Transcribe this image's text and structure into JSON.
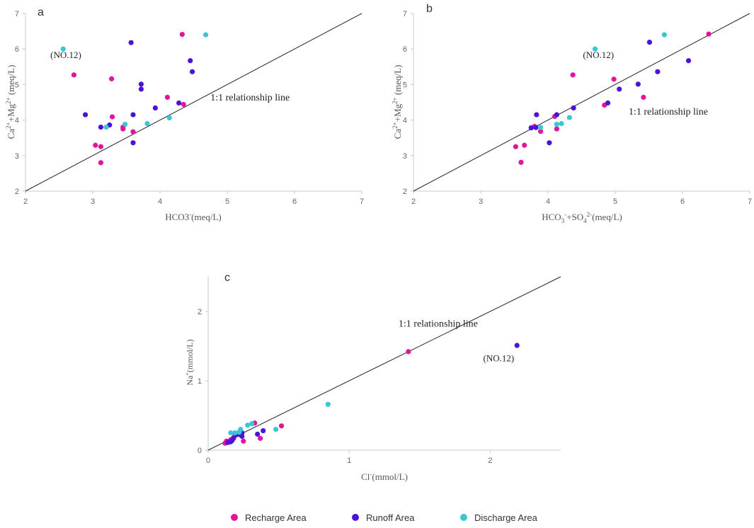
{
  "chart_data": [
    {
      "id": "a",
      "type": "scatter",
      "panel_label": "a",
      "xlabel": "HCO3-(meq/L)",
      "ylabel": "Ca2++Mg2+ (meq/L)",
      "xlim": [
        2,
        7
      ],
      "ylim": [
        2,
        7
      ],
      "xticks": [
        2,
        3,
        4,
        5,
        6,
        7
      ],
      "yticks": [
        2,
        3,
        4,
        5,
        6,
        7
      ],
      "reference_line": {
        "label": "1:1 relationship line",
        "from": [
          2,
          2
        ],
        "to": [
          7,
          7
        ],
        "label_at": [
          4.75,
          4.55
        ]
      },
      "annotations": [
        {
          "text": "(NO.12)",
          "x": 2.6,
          "y": 5.75
        }
      ],
      "series": [
        {
          "name": "Recharge Area",
          "color": "#e3139c",
          "points": [
            [
              4.33,
              6.41
            ],
            [
              2.72,
              5.27
            ],
            [
              3.28,
              5.16
            ],
            [
              4.11,
              4.64
            ],
            [
              4.35,
              4.44
            ],
            [
              3.29,
              4.09
            ],
            [
              3.45,
              3.8
            ],
            [
              3.45,
              3.75
            ],
            [
              3.6,
              3.67
            ],
            [
              3.04,
              3.29
            ],
            [
              3.12,
              3.25
            ],
            [
              3.12,
              2.8
            ]
          ]
        },
        {
          "name": "Runoff Area",
          "color": "#4a14d8",
          "points": [
            [
              3.57,
              6.18
            ],
            [
              4.45,
              5.67
            ],
            [
              4.48,
              5.36
            ],
            [
              3.72,
              5.01
            ],
            [
              3.72,
              4.87
            ],
            [
              4.28,
              4.48
            ],
            [
              3.93,
              4.34
            ],
            [
              2.89,
              4.15
            ],
            [
              3.6,
              4.15
            ],
            [
              3.25,
              3.86
            ],
            [
              3.12,
              3.8
            ],
            [
              3.6,
              3.36
            ]
          ]
        },
        {
          "name": "Discharge Area",
          "color": "#3cc6d3",
          "points": [
            [
              2.56,
              6.0
            ],
            [
              4.68,
              6.4
            ],
            [
              4.14,
              4.06
            ],
            [
              3.81,
              3.9
            ],
            [
              3.48,
              3.88
            ],
            [
              3.2,
              3.8
            ]
          ]
        }
      ]
    },
    {
      "id": "b",
      "type": "scatter",
      "panel_label": "b",
      "xlabel": "HCO3-+SO42-(meq/L)",
      "ylabel": "Ca2++Mg2+ (meq/L)",
      "xlim": [
        2,
        7
      ],
      "ylim": [
        2,
        7
      ],
      "xticks": [
        2,
        3,
        4,
        5,
        6,
        7
      ],
      "yticks": [
        2,
        3,
        4,
        5,
        6,
        7
      ],
      "reference_line": {
        "label": "1:1 relationship line",
        "from": [
          2,
          2
        ],
        "to": [
          7,
          7
        ],
        "label_at": [
          5.2,
          4.15
        ]
      },
      "annotations": [
        {
          "text": "(NO.12)",
          "x": 4.75,
          "y": 5.75
        }
      ],
      "series": [
        {
          "name": "Recharge Area",
          "color": "#e3139c",
          "points": [
            [
              6.39,
              6.42
            ],
            [
              4.37,
              5.27
            ],
            [
              4.98,
              5.15
            ],
            [
              5.42,
              4.64
            ],
            [
              4.84,
              4.42
            ],
            [
              4.1,
              4.1
            ],
            [
              4.13,
              3.75
            ],
            [
              3.89,
              3.68
            ],
            [
              3.8,
              3.82
            ],
            [
              3.52,
              3.25
            ],
            [
              3.65,
              3.29
            ],
            [
              3.6,
              2.81
            ]
          ]
        },
        {
          "name": "Runoff Area",
          "color": "#4a14d8",
          "points": [
            [
              5.51,
              6.19
            ],
            [
              6.09,
              5.67
            ],
            [
              5.63,
              5.36
            ],
            [
              5.34,
              5.01
            ],
            [
              5.06,
              4.87
            ],
            [
              4.89,
              4.48
            ],
            [
              4.38,
              4.34
            ],
            [
              3.83,
              4.15
            ],
            [
              4.13,
              4.15
            ],
            [
              3.75,
              3.78
            ],
            [
              3.82,
              3.79
            ],
            [
              4.02,
              3.36
            ]
          ]
        },
        {
          "name": "Discharge Area",
          "color": "#3cc6d3",
          "points": [
            [
              4.7,
              6.0
            ],
            [
              5.73,
              6.4
            ],
            [
              4.32,
              4.07
            ],
            [
              4.2,
              3.9
            ],
            [
              4.13,
              3.88
            ],
            [
              3.89,
              3.79
            ]
          ]
        }
      ]
    },
    {
      "id": "c",
      "type": "scatter",
      "panel_label": "c",
      "xlabel": "Cl-(mmol/L)",
      "ylabel": "Na+(mmol/L)",
      "xlim": [
        0,
        2.5
      ],
      "ylim": [
        0,
        2.5
      ],
      "xticks": [
        0,
        1,
        2
      ],
      "yticks": [
        0,
        1,
        2
      ],
      "reference_line": {
        "label": "1:1 relationship line",
        "from": [
          0,
          0
        ],
        "to": [
          2.5,
          2.5
        ],
        "label_at": [
          1.35,
          1.78
        ]
      },
      "annotations": [
        {
          "text": "(NO.12)",
          "x": 2.06,
          "y": 1.28
        }
      ],
      "series": [
        {
          "name": "Recharge Area",
          "color": "#e3139c",
          "points": [
            [
              1.42,
              1.42
            ],
            [
              0.52,
              0.35
            ],
            [
              0.33,
              0.39
            ],
            [
              0.37,
              0.17
            ],
            [
              0.25,
              0.13
            ],
            [
              0.2,
              0.24
            ],
            [
              0.19,
              0.22
            ],
            [
              0.18,
              0.18
            ],
            [
              0.17,
              0.16
            ],
            [
              0.16,
              0.15
            ],
            [
              0.13,
              0.13
            ],
            [
              0.12,
              0.1
            ],
            [
              0.21,
              0.23
            ]
          ]
        },
        {
          "name": "Runoff Area",
          "color": "#4a14d8",
          "points": [
            [
              2.19,
              1.51
            ],
            [
              0.39,
              0.28
            ],
            [
              0.35,
              0.23
            ],
            [
              0.24,
              0.25
            ],
            [
              0.23,
              0.22
            ],
            [
              0.24,
              0.2
            ],
            [
              0.2,
              0.22
            ],
            [
              0.18,
              0.17
            ],
            [
              0.17,
              0.14
            ],
            [
              0.16,
              0.12
            ],
            [
              0.15,
              0.12
            ],
            [
              0.14,
              0.11
            ]
          ]
        },
        {
          "name": "Discharge Area",
          "color": "#3cc6d3",
          "points": [
            [
              0.85,
              0.66
            ],
            [
              0.48,
              0.3
            ],
            [
              0.31,
              0.38
            ],
            [
              0.28,
              0.36
            ],
            [
              0.23,
              0.3
            ],
            [
              0.22,
              0.26
            ],
            [
              0.19,
              0.25
            ],
            [
              0.16,
              0.25
            ]
          ]
        }
      ]
    }
  ],
  "legend": [
    {
      "label": "Recharge Area",
      "color": "#e3139c"
    },
    {
      "label": "Runoff Area",
      "color": "#4a14d8"
    },
    {
      "label": "Discharge Area",
      "color": "#3cc6d3"
    }
  ]
}
